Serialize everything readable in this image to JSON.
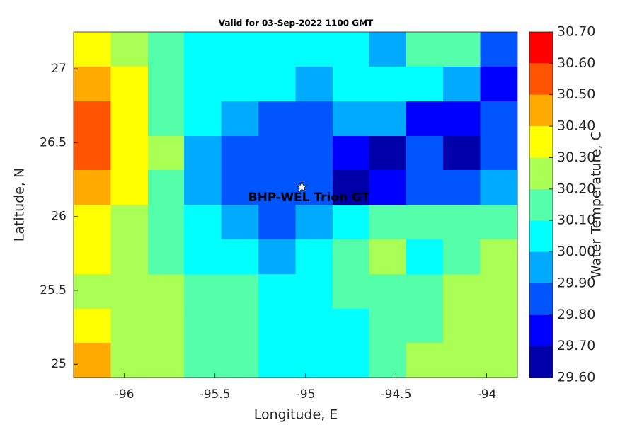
{
  "chart_data": {
    "type": "contourf",
    "title": "Valid for 03-Sep-2022 1100 GMT",
    "xlabel": "Longitude, E",
    "ylabel": "Latitude, N",
    "xlim": [
      -96.28,
      -93.83
    ],
    "ylim": [
      24.91,
      27.25
    ],
    "xticks": [
      -96,
      -95.5,
      -95,
      -94.5,
      -94
    ],
    "yticks": [
      25,
      25.5,
      26,
      26.5,
      27
    ],
    "x": [
      -96.18,
      -95.97,
      -95.77,
      -95.57,
      -95.36,
      -95.16,
      -94.95,
      -94.75,
      -94.55,
      -94.34,
      -94.14,
      -93.93
    ],
    "y": [
      27.13,
      26.9,
      26.66,
      26.43,
      26.2,
      25.96,
      25.73,
      25.49,
      25.26,
      25.03
    ],
    "z": [
      [
        30.35,
        30.25,
        30.15,
        30.05,
        30.05,
        30.05,
        30.05,
        30.05,
        29.95,
        30.15,
        30.15,
        29.85
      ],
      [
        30.45,
        30.35,
        30.15,
        30.05,
        30.05,
        30.05,
        29.95,
        30.05,
        30.05,
        30.05,
        29.95,
        29.75
      ],
      [
        30.55,
        30.35,
        30.15,
        30.05,
        29.95,
        29.85,
        29.85,
        29.95,
        29.95,
        29.75,
        29.75,
        29.85
      ],
      [
        30.55,
        30.35,
        30.25,
        29.95,
        29.85,
        29.85,
        29.85,
        29.75,
        29.65,
        29.85,
        29.65,
        29.85
      ],
      [
        30.45,
        30.35,
        30.15,
        29.95,
        29.85,
        29.85,
        29.85,
        29.65,
        29.75,
        29.85,
        29.85,
        29.95
      ],
      [
        30.35,
        30.25,
        30.15,
        30.05,
        29.95,
        29.85,
        29.95,
        30.05,
        30.15,
        30.15,
        30.15,
        30.15
      ],
      [
        30.35,
        30.25,
        30.15,
        30.05,
        30.05,
        29.95,
        30.05,
        30.15,
        30.25,
        30.05,
        30.15,
        30.25
      ],
      [
        30.25,
        30.25,
        30.25,
        30.15,
        30.15,
        30.05,
        30.05,
        30.15,
        30.15,
        30.15,
        30.25,
        30.25
      ],
      [
        30.35,
        30.25,
        30.25,
        30.15,
        30.15,
        30.05,
        30.05,
        30.05,
        30.15,
        30.15,
        30.25,
        30.25
      ],
      [
        30.45,
        30.25,
        30.25,
        30.15,
        30.15,
        30.05,
        30.05,
        30.05,
        30.15,
        30.25,
        30.25,
        30.25
      ]
    ],
    "colorbar": {
      "label": "Water Temperature, C",
      "ticks": [
        {
          "value": 29.6,
          "label": "29.60"
        },
        {
          "value": 29.7,
          "label": "29.70"
        },
        {
          "value": 29.8,
          "label": "29.80"
        },
        {
          "value": 29.9,
          "label": "29.90"
        },
        {
          "value": 30.0,
          "label": "30.00"
        },
        {
          "value": 30.1,
          "label": "30.10"
        },
        {
          "value": 30.2,
          "label": "30.20"
        },
        {
          "value": 30.3,
          "label": "30.30"
        },
        {
          "value": 30.4,
          "label": "30.40"
        },
        {
          "value": 30.5,
          "label": "30.50"
        },
        {
          "value": 30.6,
          "label": "30.60"
        },
        {
          "value": 30.7,
          "label": "30.70"
        }
      ],
      "colors": [
        "#0000aa",
        "#0000ff",
        "#0055ff",
        "#00aaff",
        "#00ffff",
        "#55ffaa",
        "#aaff55",
        "#ffff00",
        "#ffaa00",
        "#ff5500",
        "#ff0000"
      ]
    },
    "annotation": {
      "text": "BHP-WEL Trion GT",
      "x": -95.02,
      "y": 26.2
    }
  }
}
